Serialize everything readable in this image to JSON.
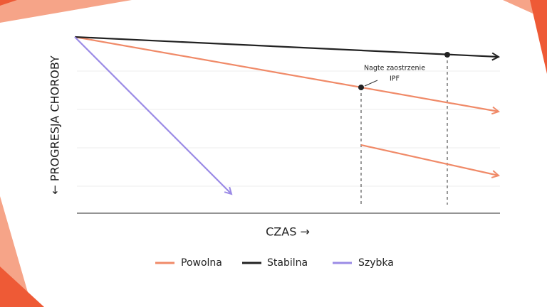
{
  "y_axis_label": "← PROGRESJA CHOROBY",
  "x_axis_label": "CZAS →",
  "annotation": [
    "Nagte zaostrzenie",
    "IPF"
  ],
  "legend": [
    "Powolna",
    "Stabilna",
    "Szybka"
  ]
}
